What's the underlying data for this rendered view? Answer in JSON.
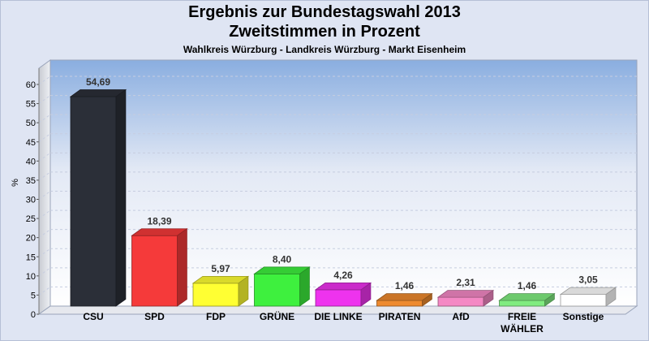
{
  "header": {
    "title_line1": "Ergebnis zur Bundestagswahl 2013",
    "title_line2": "Zweitstimmen in Prozent",
    "subtitle": "Wahlkreis Würzburg - Landkreis Würzburg - Markt Eisenheim"
  },
  "chart_data": {
    "type": "bar",
    "title": "Ergebnis zur Bundestagswahl 2013 Zweitstimmen in Prozent",
    "subtitle": "Wahlkreis Würzburg - Landkreis Würzburg - Markt Eisenheim",
    "xlabel": "",
    "ylabel": "%",
    "ylim": [
      0,
      60
    ],
    "yticks": [
      0,
      5,
      10,
      15,
      20,
      25,
      30,
      35,
      40,
      45,
      50,
      55,
      60
    ],
    "grid": true,
    "categories": [
      "CSU",
      "SPD",
      "FDP",
      "GRÜNE",
      "DIE LINKE",
      "PIRATEN",
      "AfD",
      "FREIE WÄHLER",
      "Sonstige"
    ],
    "category_lines": [
      [
        "CSU"
      ],
      [
        "SPD"
      ],
      [
        "FDP"
      ],
      [
        "GRÜNE"
      ],
      [
        "DIE LINKE"
      ],
      [
        "PIRATEN"
      ],
      [
        "AfD"
      ],
      [
        "FREIE",
        "WÄHLER"
      ],
      [
        "Sonstige"
      ]
    ],
    "values": [
      54.69,
      18.39,
      5.97,
      8.4,
      4.26,
      1.46,
      2.31,
      1.46,
      3.05
    ],
    "value_labels": [
      "54,69",
      "18,39",
      "5,97",
      "8,40",
      "4,26",
      "1,46",
      "2,31",
      "1,46",
      "3,05"
    ],
    "colors": [
      "#2b2f38",
      "#f53a3a",
      "#ffff33",
      "#3ef03e",
      "#ee33ee",
      "#ee8a2e",
      "#f488c4",
      "#80ec80",
      "#ffffff"
    ]
  }
}
